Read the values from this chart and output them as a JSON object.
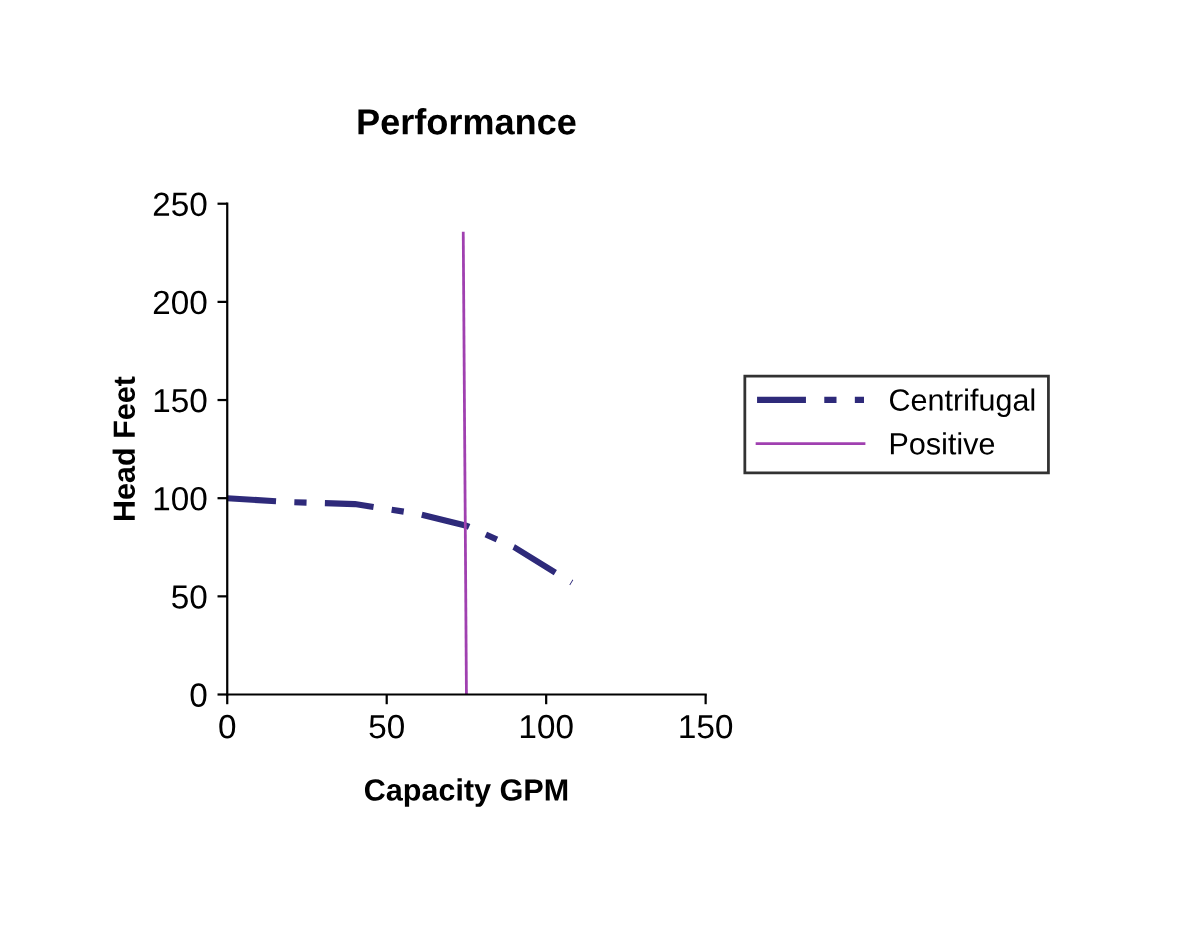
{
  "chart_data": {
    "type": "line",
    "title": "Performance",
    "xlabel": "Capacity GPM",
    "ylabel": "Head Feet",
    "xlim": [
      0,
      150
    ],
    "xticks": [
      0,
      50,
      100,
      150
    ],
    "ylim": [
      0,
      250
    ],
    "yticks": [
      0,
      50,
      100,
      150,
      200,
      250
    ],
    "grid": false,
    "legend": "right",
    "marker": "none",
    "series": [
      {
        "name": "Centrifugal",
        "color": "#2e2a7a",
        "line_style": "dashdot",
        "x": [
          0,
          20,
          40,
          60,
          75,
          90,
          108
        ],
        "values": [
          100,
          98,
          97,
          92,
          86,
          75,
          57
        ]
      },
      {
        "name": "Positive",
        "color": "#a040b0",
        "line_style": "solid",
        "x": [
          74,
          75
        ],
        "values": [
          235,
          0
        ]
      }
    ]
  }
}
